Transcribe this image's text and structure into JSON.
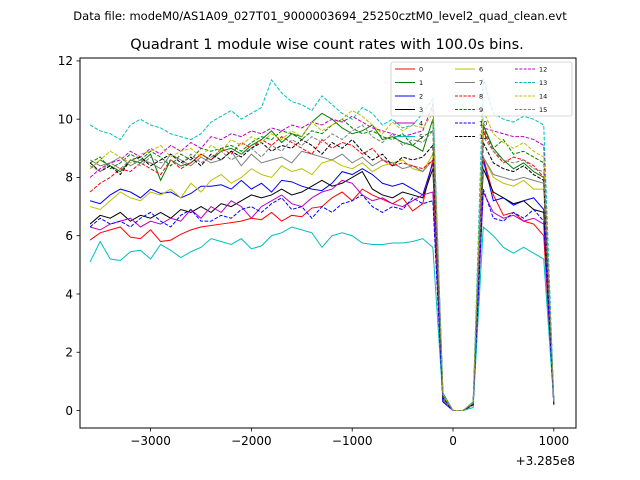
{
  "page": {
    "suptitle": "Data file: modeM0/AS1A09_027T01_9000003694_25250cztM0_level2_quad_clean.evt"
  },
  "chart_data": {
    "type": "line",
    "title": "Quadrant 1 module wise count rates with 100.0s bins.",
    "xlabel": "",
    "ylabel": "",
    "x_offset_label": "+3.285e8",
    "xlim": [
      -3700,
      1220
    ],
    "ylim": [
      -0.6,
      12.1
    ],
    "xticks": [
      -3000,
      -2000,
      -1000,
      0,
      1000
    ],
    "xtick_labels": [
      "−3000",
      "−2000",
      "−1000",
      "0",
      "1000"
    ],
    "yticks": [
      0,
      2,
      4,
      6,
      8,
      10,
      12
    ],
    "ytick_labels": [
      "0",
      "2",
      "4",
      "6",
      "8",
      "10",
      "12"
    ],
    "legend_location": "upper-right",
    "x": [
      -3600,
      -3500,
      -3400,
      -3300,
      -3200,
      -3100,
      -3000,
      -2900,
      -2800,
      -2700,
      -2600,
      -2500,
      -2400,
      -2300,
      -2200,
      -2100,
      -2000,
      -1900,
      -1800,
      -1700,
      -1600,
      -1500,
      -1400,
      -1300,
      -1200,
      -1100,
      -1000,
      -900,
      -800,
      -700,
      -600,
      -500,
      -400,
      -300,
      -200,
      -100,
      0,
      100,
      200,
      300,
      400,
      500,
      600,
      700,
      800,
      900,
      1000
    ],
    "series": [
      {
        "name": "0",
        "color": "#ff0000",
        "dash": "solid",
        "values": [
          5.85,
          6.1,
          6.2,
          6.3,
          5.95,
          5.9,
          6.2,
          5.8,
          5.85,
          6.05,
          6.2,
          6.3,
          6.35,
          6.4,
          6.45,
          6.5,
          6.6,
          6.55,
          6.8,
          6.5,
          6.7,
          6.65,
          6.95,
          7.0,
          7.3,
          7.5,
          7.2,
          7.6,
          7.4,
          7.25,
          7.1,
          7.3,
          6.85,
          7.1,
          8.6,
          0.3,
          0.0,
          0.0,
          0.2,
          8.7,
          7.4,
          6.7,
          6.8,
          6.5,
          6.4,
          6.0,
          0.25
        ]
      },
      {
        "name": "1",
        "color": "#008000",
        "dash": "solid",
        "values": [
          8.3,
          8.6,
          8.4,
          8.2,
          8.6,
          8.5,
          8.8,
          7.9,
          8.6,
          8.4,
          8.5,
          8.8,
          8.6,
          8.9,
          9.0,
          8.8,
          9.1,
          9.3,
          9.6,
          9.2,
          9.5,
          9.4,
          9.9,
          10.2,
          10.0,
          9.7,
          9.5,
          9.6,
          9.8,
          9.3,
          9.4,
          9.2,
          9.1,
          8.9,
          10.0,
          0.6,
          0.0,
          0.0,
          0.25,
          9.8,
          9.0,
          8.6,
          8.3,
          8.5,
          8.2,
          8.0,
          0.3
        ]
      },
      {
        "name": "2",
        "color": "#0000ff",
        "dash": "solid",
        "values": [
          7.2,
          7.1,
          7.4,
          7.6,
          7.5,
          7.3,
          7.6,
          7.45,
          7.5,
          7.3,
          7.45,
          7.7,
          7.7,
          7.75,
          7.6,
          7.9,
          7.6,
          7.8,
          7.5,
          7.9,
          7.85,
          7.7,
          7.6,
          7.55,
          7.8,
          8.2,
          8.1,
          8.3,
          8.1,
          7.8,
          7.7,
          7.8,
          7.6,
          7.4,
          8.5,
          0.4,
          0.0,
          0.0,
          0.2,
          8.6,
          7.2,
          7.3,
          7.05,
          7.2,
          7.3,
          6.9,
          0.3
        ]
      },
      {
        "name": "3",
        "color": "#000000",
        "dash": "solid",
        "values": [
          6.4,
          6.7,
          6.6,
          6.8,
          6.5,
          6.7,
          6.6,
          6.8,
          6.6,
          6.9,
          6.8,
          7.0,
          6.8,
          7.1,
          7.0,
          7.2,
          7.4,
          7.3,
          7.4,
          7.6,
          7.4,
          7.5,
          7.7,
          7.9,
          7.7,
          7.8,
          8.0,
          8.2,
          7.6,
          7.4,
          7.3,
          7.5,
          7.4,
          7.3,
          8.3,
          0.3,
          0.0,
          0.0,
          0.2,
          8.3,
          7.5,
          7.3,
          7.1,
          7.2,
          6.9,
          6.8,
          0.2
        ]
      },
      {
        "name": "4",
        "color": "#bf00bf",
        "dash": "solid",
        "values": [
          6.3,
          6.2,
          6.4,
          6.5,
          6.6,
          6.3,
          6.5,
          6.4,
          6.6,
          6.5,
          6.9,
          6.6,
          7.0,
          6.8,
          7.2,
          7.0,
          6.6,
          7.0,
          7.2,
          7.4,
          7.1,
          7.0,
          7.3,
          7.5,
          7.6,
          7.9,
          7.8,
          7.4,
          7.2,
          7.3,
          7.1,
          7.0,
          7.2,
          7.4,
          7.5,
          0.35,
          0.0,
          0.0,
          0.2,
          7.5,
          6.8,
          6.6,
          6.7,
          6.5,
          6.6,
          6.4,
          0.25
        ]
      },
      {
        "name": "5",
        "color": "#00bfbf",
        "dash": "solid",
        "values": [
          5.1,
          5.8,
          5.2,
          5.15,
          5.45,
          5.5,
          5.2,
          5.7,
          5.5,
          5.25,
          5.45,
          5.6,
          5.9,
          5.8,
          5.7,
          5.9,
          5.55,
          5.65,
          6.0,
          6.1,
          6.3,
          6.2,
          6.1,
          5.6,
          6.0,
          6.1,
          6.0,
          5.75,
          5.7,
          5.7,
          5.75,
          5.75,
          5.8,
          5.9,
          5.6,
          0.35,
          0.0,
          0.0,
          0.1,
          6.3,
          6.0,
          5.6,
          5.4,
          5.6,
          5.4,
          5.2,
          0.25
        ]
      },
      {
        "name": "6",
        "color": "#bfbf00",
        "dash": "solid",
        "values": [
          7.0,
          6.9,
          7.2,
          7.5,
          7.3,
          7.2,
          7.5,
          7.4,
          7.6,
          7.3,
          7.8,
          7.5,
          7.9,
          8.1,
          7.8,
          8.0,
          8.3,
          8.1,
          8.0,
          8.4,
          8.2,
          8.3,
          8.1,
          8.5,
          8.6,
          8.4,
          8.3,
          8.5,
          8.2,
          8.4,
          8.5,
          8.6,
          8.3,
          8.2,
          8.8,
          0.45,
          0.0,
          0.0,
          0.2,
          8.7,
          8.0,
          7.8,
          7.7,
          7.9,
          7.6,
          7.6,
          0.3
        ]
      },
      {
        "name": "7",
        "color": "#808080",
        "dash": "solid",
        "values": [
          8.6,
          8.4,
          8.5,
          8.7,
          8.4,
          8.6,
          8.5,
          8.3,
          8.8,
          8.6,
          8.4,
          8.7,
          8.5,
          8.6,
          8.9,
          8.4,
          8.8,
          8.5,
          8.6,
          8.7,
          8.5,
          8.9,
          8.8,
          8.7,
          8.6,
          8.8,
          8.5,
          8.7,
          8.4,
          8.6,
          8.5,
          8.3,
          8.4,
          8.2,
          8.6,
          0.4,
          0.0,
          0.0,
          0.2,
          8.7,
          8.1,
          8.0,
          7.9,
          8.0,
          7.9,
          7.8,
          0.3
        ]
      },
      {
        "name": "8",
        "color": "#ff0000",
        "dash": "dashed",
        "values": [
          7.5,
          7.8,
          8.0,
          8.3,
          8.2,
          8.5,
          8.3,
          8.1,
          8.6,
          8.3,
          8.5,
          8.8,
          8.6,
          9.0,
          8.8,
          9.2,
          9.0,
          9.3,
          9.1,
          9.4,
          9.2,
          9.0,
          8.8,
          9.3,
          9.0,
          9.2,
          9.1,
          8.8,
          9.0,
          8.6,
          8.4,
          8.5,
          8.4,
          8.3,
          8.6,
          0.5,
          0.0,
          0.0,
          0.25,
          9.6,
          8.9,
          8.5,
          8.7,
          8.6,
          8.4,
          8.0,
          0.3
        ]
      },
      {
        "name": "9",
        "color": "#008000",
        "dash": "dashed",
        "values": [
          8.5,
          8.7,
          8.3,
          8.5,
          8.8,
          8.6,
          8.9,
          8.7,
          8.4,
          8.8,
          8.6,
          9.0,
          8.9,
          9.0,
          9.1,
          8.9,
          9.2,
          9.4,
          9.3,
          9.6,
          9.5,
          9.3,
          9.6,
          9.5,
          9.8,
          10.0,
          9.7,
          9.5,
          9.6,
          9.4,
          9.3,
          9.5,
          9.1,
          9.4,
          9.6,
          0.5,
          0.0,
          0.0,
          0.25,
          9.7,
          9.0,
          9.3,
          8.8,
          8.9,
          8.7,
          8.5,
          0.3
        ]
      },
      {
        "name": "10",
        "color": "#0000ff",
        "dash": "dashed",
        "values": [
          6.3,
          6.6,
          6.4,
          6.5,
          6.3,
          6.6,
          6.8,
          6.5,
          6.3,
          6.7,
          6.9,
          6.5,
          6.5,
          6.7,
          6.6,
          6.9,
          7.0,
          6.8,
          7.1,
          7.3,
          6.9,
          7.0,
          6.6,
          7.0,
          6.8,
          7.1,
          7.2,
          7.4,
          7.0,
          6.8,
          7.0,
          6.9,
          7.3,
          7.1,
          7.2,
          0.3,
          0.0,
          0.0,
          0.2,
          7.6,
          6.6,
          6.5,
          6.8,
          6.6,
          6.9,
          6.5,
          0.2
        ]
      },
      {
        "name": "11",
        "color": "#000000",
        "dash": "dashed",
        "values": [
          8.5,
          8.2,
          8.4,
          8.1,
          8.6,
          8.7,
          8.4,
          8.6,
          8.8,
          8.5,
          8.7,
          8.4,
          8.8,
          8.6,
          8.9,
          8.7,
          9.0,
          9.2,
          8.9,
          9.1,
          9.0,
          9.3,
          9.1,
          8.8,
          9.2,
          9.0,
          9.3,
          8.9,
          8.6,
          8.8,
          8.4,
          8.7,
          8.6,
          8.7,
          9.1,
          0.45,
          0.0,
          0.0,
          0.2,
          9.2,
          8.5,
          8.3,
          8.2,
          8.4,
          8.1,
          7.9,
          0.3
        ]
      },
      {
        "name": "12",
        "color": "#bf00bf",
        "dash": "dashed",
        "values": [
          8.0,
          8.3,
          8.5,
          8.6,
          8.9,
          8.7,
          9.0,
          8.8,
          9.1,
          8.9,
          9.2,
          9.0,
          9.4,
          9.3,
          9.5,
          9.4,
          9.6,
          9.5,
          9.7,
          9.6,
          9.8,
          9.7,
          9.9,
          9.8,
          10.0,
          9.9,
          10.1,
          9.9,
          9.7,
          9.6,
          9.5,
          9.4,
          9.5,
          9.6,
          10.5,
          0.55,
          0.0,
          0.0,
          0.3,
          9.7,
          9.6,
          9.5,
          9.4,
          9.4,
          9.3,
          9.1,
          0.3
        ]
      },
      {
        "name": "13",
        "color": "#00bfbf",
        "dash": "dashed",
        "values": [
          9.8,
          9.6,
          9.5,
          9.3,
          9.8,
          10.0,
          9.8,
          9.7,
          9.5,
          9.4,
          9.3,
          9.5,
          9.9,
          10.1,
          10.3,
          10.0,
          10.2,
          10.4,
          11.35,
          10.9,
          10.6,
          10.5,
          10.3,
          10.8,
          10.5,
          10.2,
          10.0,
          10.4,
          10.2,
          9.8,
          10.0,
          9.7,
          9.8,
          10.2,
          10.7,
          0.6,
          0.0,
          0.0,
          0.3,
          11.4,
          10.2,
          10.0,
          9.9,
          10.1,
          10.0,
          9.8,
          0.35
        ]
      },
      {
        "name": "14",
        "color": "#bfbf00",
        "dash": "dashed",
        "values": [
          8.3,
          8.6,
          8.9,
          8.7,
          8.5,
          8.8,
          8.9,
          9.1,
          8.7,
          8.9,
          9.0,
          8.7,
          9.1,
          8.9,
          9.3,
          9.1,
          9.4,
          9.2,
          9.5,
          9.3,
          9.6,
          9.4,
          9.9,
          9.6,
          9.8,
          10.0,
          10.3,
          10.1,
          9.8,
          9.5,
          9.9,
          9.6,
          9.8,
          9.7,
          10.2,
          0.55,
          0.0,
          0.0,
          0.3,
          10.3,
          9.5,
          9.2,
          9.0,
          9.2,
          8.9,
          8.7,
          0.3
        ]
      },
      {
        "name": "15",
        "color": "#808080",
        "dash": "dashed",
        "values": [
          8.4,
          8.2,
          8.5,
          8.3,
          8.6,
          8.4,
          8.7,
          8.5,
          8.6,
          8.4,
          8.8,
          8.5,
          8.7,
          8.9,
          8.6,
          8.8,
          9.0,
          8.7,
          9.1,
          8.9,
          9.3,
          9.1,
          9.4,
          9.2,
          9.5,
          9.3,
          9.6,
          9.8,
          9.4,
          9.2,
          9.5,
          9.1,
          9.3,
          9.2,
          9.6,
          0.5,
          0.0,
          0.0,
          0.25,
          9.4,
          8.9,
          8.6,
          8.5,
          8.6,
          8.3,
          8.2,
          0.3
        ]
      }
    ]
  }
}
